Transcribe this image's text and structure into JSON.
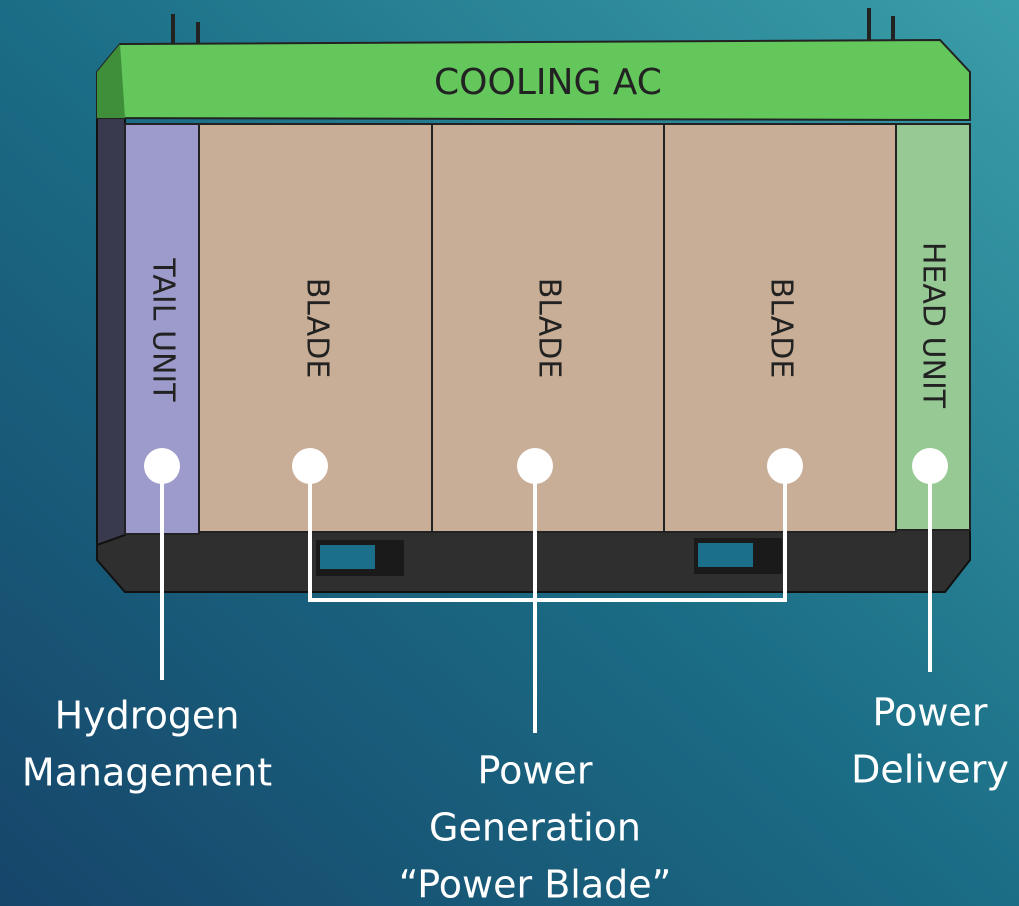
{
  "top_unit": {
    "label": "COOLING AC"
  },
  "modules": [
    {
      "label": "TAIL UNIT"
    },
    {
      "label": "BLADE"
    },
    {
      "label": "BLADE"
    },
    {
      "label": "BLADE"
    },
    {
      "label": "HEAD UNIT"
    }
  ],
  "callouts": [
    {
      "lines": [
        "Hydrogen",
        "Management"
      ]
    },
    {
      "lines": [
        "Power",
        "Generation",
        "“Power Blade”"
      ]
    },
    {
      "lines": [
        "Power",
        "Delivery"
      ]
    }
  ]
}
